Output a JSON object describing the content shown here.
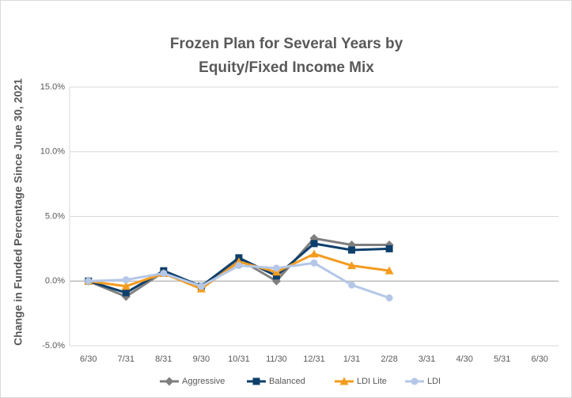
{
  "chart_data": {
    "type": "line",
    "title": [
      "Frozen Plan for Several Years by",
      "Equity/Fixed Income Mix"
    ],
    "y_label": "Change in Funded Percentage Since June 30, 2021",
    "categories": [
      "6/30",
      "7/31",
      "8/31",
      "9/30",
      "10/31",
      "11/30",
      "12/31",
      "1/31",
      "2/28",
      "3/31",
      "4/30",
      "5/31",
      "6/30"
    ],
    "series": [
      {
        "name": "Aggressive",
        "color": "#7f7f7f",
        "marker": "diamond",
        "values": [
          0,
          -1.2,
          0.7,
          -0.5,
          1.7,
          0.0,
          3.3,
          2.8,
          2.8,
          null,
          null,
          null,
          null
        ]
      },
      {
        "name": "Balanced",
        "color": "#0d3f6b",
        "marker": "square",
        "values": [
          0,
          -0.9,
          0.8,
          -0.4,
          1.8,
          0.4,
          2.9,
          2.4,
          2.5,
          null,
          null,
          null,
          null
        ]
      },
      {
        "name": "LDI Lite",
        "color": "#f39c1f",
        "marker": "triangle",
        "values": [
          0,
          -0.4,
          0.6,
          -0.6,
          1.5,
          0.7,
          2.1,
          1.2,
          0.8,
          null,
          null,
          null,
          null
        ]
      },
      {
        "name": "LDI",
        "color": "#b4c7e7",
        "marker": "circle",
        "values": [
          0,
          0.1,
          0.6,
          -0.4,
          1.2,
          1.0,
          1.4,
          -0.3,
          -1.3,
          null,
          null,
          null,
          null
        ]
      }
    ],
    "ylim": [
      -5,
      15
    ],
    "yticks": [
      {
        "value": -5,
        "label": "-5.0%"
      },
      {
        "value": 0,
        "label": "0.0%"
      },
      {
        "value": 5,
        "label": "5.0%"
      },
      {
        "value": 10,
        "label": "10.0%"
      },
      {
        "value": 15,
        "label": "15.0%"
      }
    ],
    "grid": true,
    "legend": "bottom"
  }
}
